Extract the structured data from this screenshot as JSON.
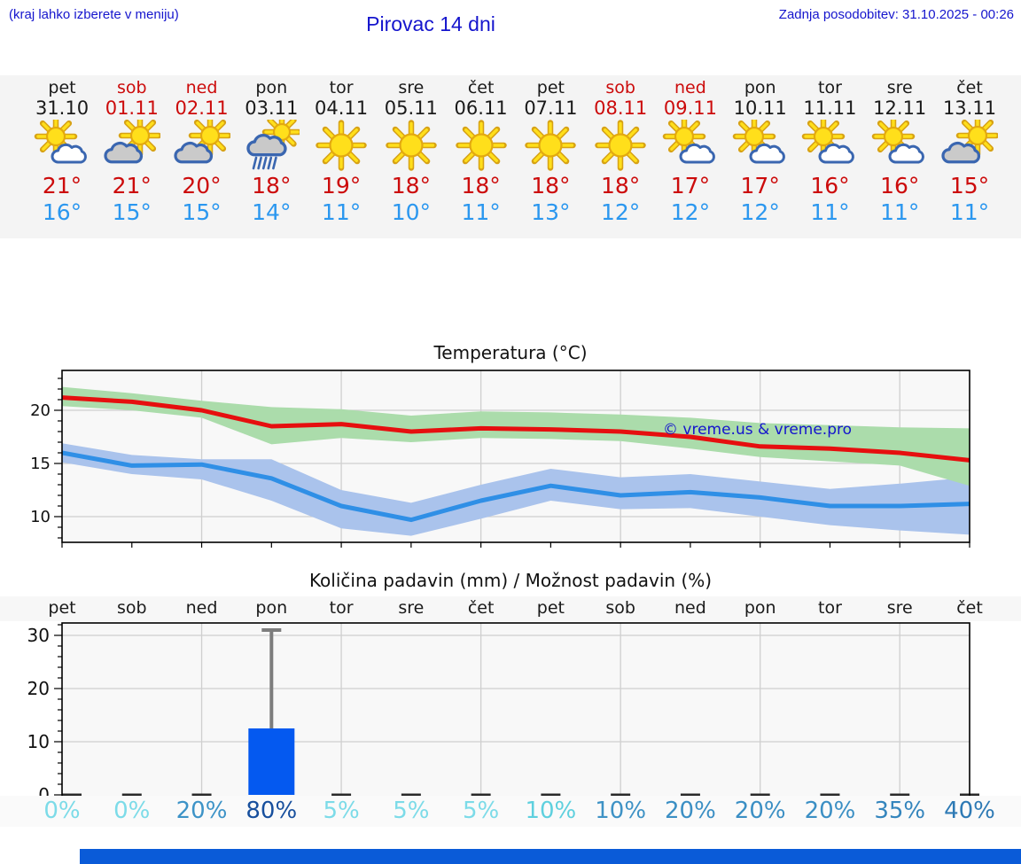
{
  "page": {
    "hint": "(kraj lahko izberete v meniju)",
    "title": "Pirovac 14 dni",
    "updated": "Zadnja posodobitev: 31.10.2025 - 00:26"
  },
  "day_strip": {
    "days": [
      {
        "name": "pet",
        "date": "31.10",
        "weekend": false,
        "icon": "sun-cloud-white",
        "high": "21°",
        "low": "16°"
      },
      {
        "name": "sob",
        "date": "01.11",
        "weekend": true,
        "icon": "sun-cloud-gray",
        "high": "21°",
        "low": "15°"
      },
      {
        "name": "ned",
        "date": "02.11",
        "weekend": true,
        "icon": "sun-cloud-gray",
        "high": "20°",
        "low": "15°"
      },
      {
        "name": "pon",
        "date": "03.11",
        "weekend": false,
        "icon": "sun-cloud-rain",
        "high": "18°",
        "low": "14°"
      },
      {
        "name": "tor",
        "date": "04.11",
        "weekend": false,
        "icon": "sun",
        "high": "19°",
        "low": "11°"
      },
      {
        "name": "sre",
        "date": "05.11",
        "weekend": false,
        "icon": "sun",
        "high": "18°",
        "low": "10°"
      },
      {
        "name": "čet",
        "date": "06.11",
        "weekend": false,
        "icon": "sun",
        "high": "18°",
        "low": "11°"
      },
      {
        "name": "pet",
        "date": "07.11",
        "weekend": false,
        "icon": "sun",
        "high": "18°",
        "low": "13°"
      },
      {
        "name": "sob",
        "date": "08.11",
        "weekend": true,
        "icon": "sun",
        "high": "18°",
        "low": "12°"
      },
      {
        "name": "ned",
        "date": "09.11",
        "weekend": true,
        "icon": "sun-cloud-white",
        "high": "17°",
        "low": "12°"
      },
      {
        "name": "pon",
        "date": "10.11",
        "weekend": false,
        "icon": "sun-cloud-white",
        "high": "17°",
        "low": "12°"
      },
      {
        "name": "tor",
        "date": "11.11",
        "weekend": false,
        "icon": "sun-cloud-white",
        "high": "16°",
        "low": "11°"
      },
      {
        "name": "sre",
        "date": "12.11",
        "weekend": false,
        "icon": "sun-cloud-white",
        "high": "16°",
        "low": "11°"
      },
      {
        "name": "čet",
        "date": "13.11",
        "weekend": false,
        "icon": "sun-cloud-gray",
        "high": "15°",
        "low": "11°"
      }
    ]
  },
  "watermark": "© vreme.us & vreme.pro",
  "chart_data": [
    {
      "type": "line",
      "title": "Temperatura (°C)",
      "categories": [
        "pet",
        "sob",
        "ned",
        "pon",
        "tor",
        "sre",
        "čet",
        "pet",
        "sob",
        "ned",
        "pon",
        "tor",
        "sre",
        "čet"
      ],
      "yticks": [
        10,
        15,
        20
      ],
      "ylim": [
        7.5,
        23.8
      ],
      "grid": true,
      "series": [
        {
          "name": "max temperatura",
          "color": "#e60f0f",
          "values": [
            21.2,
            20.8,
            20.0,
            18.5,
            18.7,
            18.0,
            18.3,
            18.2,
            18.0,
            17.5,
            16.6,
            16.4,
            16.0,
            15.3
          ]
        },
        {
          "name": "min temperatura",
          "color": "#2f8fe6",
          "values": [
            16.0,
            14.8,
            14.9,
            13.6,
            11.0,
            9.7,
            11.5,
            12.9,
            12.0,
            12.3,
            11.8,
            11.0,
            11.0,
            11.2
          ]
        }
      ],
      "bands": [
        {
          "name": "max razpon",
          "color": "#abdcab",
          "upper": [
            22.2,
            21.6,
            20.9,
            20.3,
            20.1,
            19.5,
            19.9,
            19.8,
            19.6,
            19.3,
            18.8,
            18.6,
            18.4,
            18.3
          ],
          "lower": [
            20.4,
            20.0,
            19.3,
            16.8,
            17.4,
            17.0,
            17.4,
            17.3,
            17.1,
            16.4,
            15.6,
            15.2,
            14.8,
            12.9
          ]
        },
        {
          "name": "min razpon",
          "color": "#aac3ec",
          "upper": [
            16.9,
            15.8,
            15.4,
            15.4,
            12.5,
            11.3,
            13.0,
            14.5,
            13.7,
            14.0,
            13.3,
            12.6,
            13.1,
            13.7
          ],
          "lower": [
            15.1,
            14.0,
            13.5,
            11.5,
            8.9,
            8.2,
            9.8,
            11.5,
            10.7,
            10.8,
            10.0,
            9.2,
            8.7,
            8.3
          ]
        }
      ],
      "watermark": "© vreme.us & vreme.pro"
    },
    {
      "type": "bar",
      "title": "Količina padavin (mm) / Možnost padavin (%)",
      "categories": [
        "pet",
        "sob",
        "ned",
        "pon",
        "tor",
        "sre",
        "čet",
        "pet",
        "sob",
        "ned",
        "pon",
        "tor",
        "sre",
        "čet"
      ],
      "values": [
        0,
        0,
        0,
        12.5,
        0,
        0,
        0,
        0,
        0,
        0,
        0,
        0,
        0,
        0
      ],
      "whisker": {
        "day_index": 3,
        "max": 31
      },
      "yticks": [
        0,
        10,
        20,
        30
      ],
      "ylim": [
        0,
        33.3
      ],
      "grid": true,
      "bar_color": "#0459f0",
      "percent_labels": [
        "0%",
        "0%",
        "20%",
        "80%",
        "5%",
        "5%",
        "5%",
        "10%",
        "10%",
        "20%",
        "20%",
        "20%",
        "35%",
        "40%"
      ],
      "percent_values": [
        0,
        0,
        20,
        80,
        5,
        5,
        5,
        10,
        10,
        20,
        20,
        20,
        35,
        40
      ],
      "percent_colors": [
        "#7cdbe8",
        "#7cdbe8",
        "#3d93c7",
        "#174f9d",
        "#7cdbe8",
        "#7cdbe8",
        "#7cdbe8",
        "#5ed0de",
        "#3e92c5",
        "#3b8fc4",
        "#3b8fc4",
        "#3b8fc4",
        "#3485bd",
        "#2e7ab5"
      ]
    }
  ],
  "colors": {
    "header_blue": "#1515cd",
    "weekend_red": "#cc0b0b",
    "high_red": "#cc0b0b",
    "low_blue": "#2b97ef",
    "line_red": "#e60f0f",
    "line_blue": "#2f8fe6",
    "band_green": "#abdcab",
    "band_blue": "#aac3ec",
    "bar_blue": "#0459f0",
    "whisker_gray": "#7d7d7d",
    "bottom_bar_blue": "#0a5bd8"
  }
}
